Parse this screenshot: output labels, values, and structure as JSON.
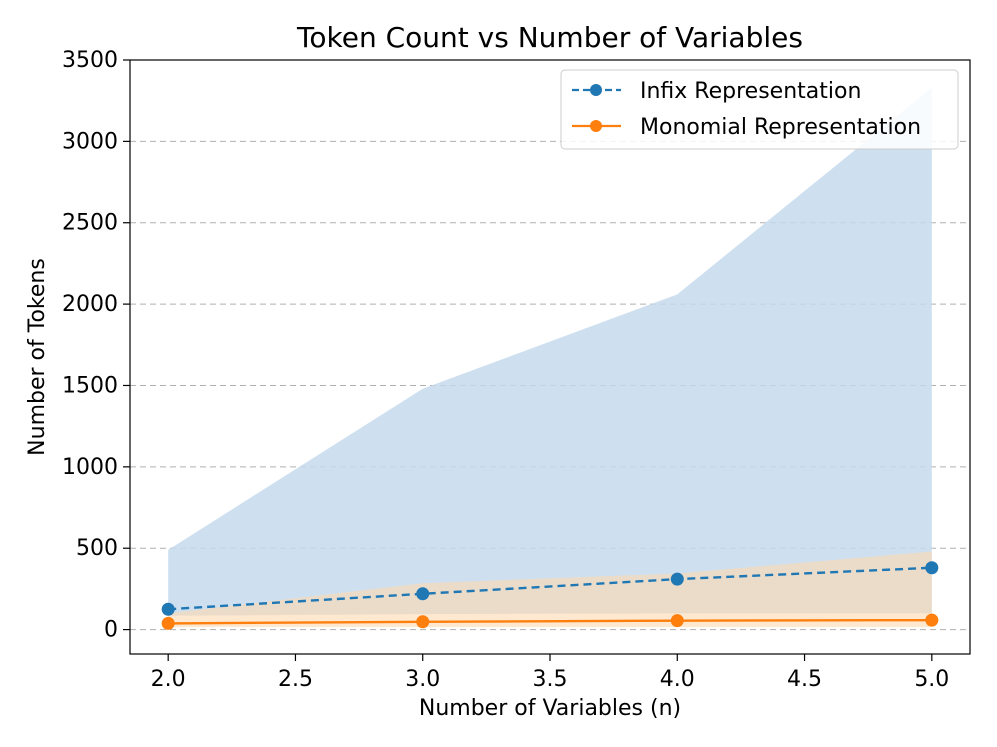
{
  "chart_data": {
    "type": "line",
    "title": "Token Count vs Number of Variables",
    "xlabel": "Number of Variables (n)",
    "ylabel": "Number of Tokens",
    "xlim": [
      1.85,
      5.15
    ],
    "ylim": [
      -150,
      3500
    ],
    "xticks": [
      "2.0",
      "2.5",
      "3.0",
      "3.5",
      "4.0",
      "4.5",
      "5.0"
    ],
    "xtick_values": [
      2.0,
      2.5,
      3.0,
      3.5,
      4.0,
      4.5,
      5.0
    ],
    "yticks": [
      "0",
      "500",
      "1000",
      "1500",
      "2000",
      "2500",
      "3000",
      "3500"
    ],
    "ytick_values": [
      0,
      500,
      1000,
      1500,
      2000,
      2500,
      3000,
      3500
    ],
    "grid": "y-dashed",
    "legend_position": "top-right",
    "x": [
      2,
      3,
      4,
      5
    ],
    "series": [
      {
        "name": "Infix Representation",
        "values": [
          125,
          220,
          310,
          380
        ],
        "band_upper": [
          490,
          1480,
          2060,
          3330
        ],
        "band_lower": [
          85,
          95,
          100,
          100
        ],
        "color": "#1f77b4",
        "band_color": "#c6dbed",
        "style": "dashed"
      },
      {
        "name": "Monomial Representation",
        "values": [
          38,
          48,
          55,
          58
        ],
        "band_upper": [
          100,
          285,
          345,
          480
        ],
        "band_lower": [
          15,
          15,
          15,
          15
        ],
        "color": "#ff7f0e",
        "band_color": "#ffd8b1",
        "style": "solid"
      }
    ]
  }
}
